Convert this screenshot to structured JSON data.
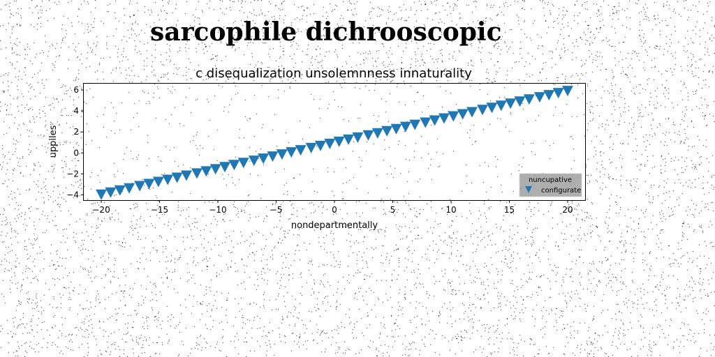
{
  "title": "sarcophile dichrooscopic",
  "chart_data": {
    "type": "scatter",
    "title": "c disequalization unsolemnness innaturality",
    "xlabel": "nondepartmentally",
    "ylabel": "uppiles",
    "xlim": [
      -21.5,
      21.5
    ],
    "ylim": [
      -4.5,
      6.6
    ],
    "xticks": [
      -20,
      -15,
      -10,
      -5,
      0,
      5,
      10,
      15,
      20
    ],
    "yticks": [
      -4,
      -2,
      0,
      2,
      4,
      6
    ],
    "xtick_labels": [
      "−20",
      "−15",
      "−10",
      "−5",
      "0",
      "5",
      "10",
      "15",
      "20"
    ],
    "ytick_labels": [
      "−4",
      "−2",
      "0",
      "2",
      "4",
      "6"
    ],
    "grid": false,
    "legend": {
      "title": "nuncupative",
      "position": "lower-right"
    },
    "series": [
      {
        "name": "configurate",
        "marker": "triangle-down",
        "color": "#1f77b4",
        "x": [
          -20,
          -19.2,
          -18.4,
          -17.6,
          -16.7,
          -15.9,
          -15.1,
          -14.3,
          -13.5,
          -12.7,
          -11.8,
          -11,
          -10.2,
          -9.4,
          -8.6,
          -7.8,
          -6.9,
          -6.1,
          -5.3,
          -4.5,
          -3.7,
          -2.9,
          -2,
          -1.2,
          -0.4,
          0.4,
          1.2,
          2,
          2.9,
          3.7,
          4.5,
          5.3,
          6.1,
          6.9,
          7.8,
          8.6,
          9.4,
          10.2,
          11,
          11.8,
          12.7,
          13.5,
          14.3,
          15.1,
          15.9,
          16.7,
          17.6,
          18.4,
          19.2,
          20
        ],
        "y": [
          -3.95,
          -3.75,
          -3.55,
          -3.35,
          -3.14,
          -2.94,
          -2.74,
          -2.54,
          -2.34,
          -2.14,
          -1.93,
          -1.73,
          -1.53,
          -1.33,
          -1.13,
          -0.93,
          -0.72,
          -0.52,
          -0.32,
          -0.12,
          0.08,
          0.28,
          0.49,
          0.69,
          0.89,
          1.09,
          1.29,
          1.49,
          1.7,
          1.9,
          2.1,
          2.3,
          2.5,
          2.7,
          2.91,
          3.11,
          3.31,
          3.51,
          3.71,
          3.91,
          4.12,
          4.32,
          4.52,
          4.72,
          4.92,
          5.12,
          5.33,
          5.53,
          5.73,
          5.93
        ]
      }
    ]
  }
}
